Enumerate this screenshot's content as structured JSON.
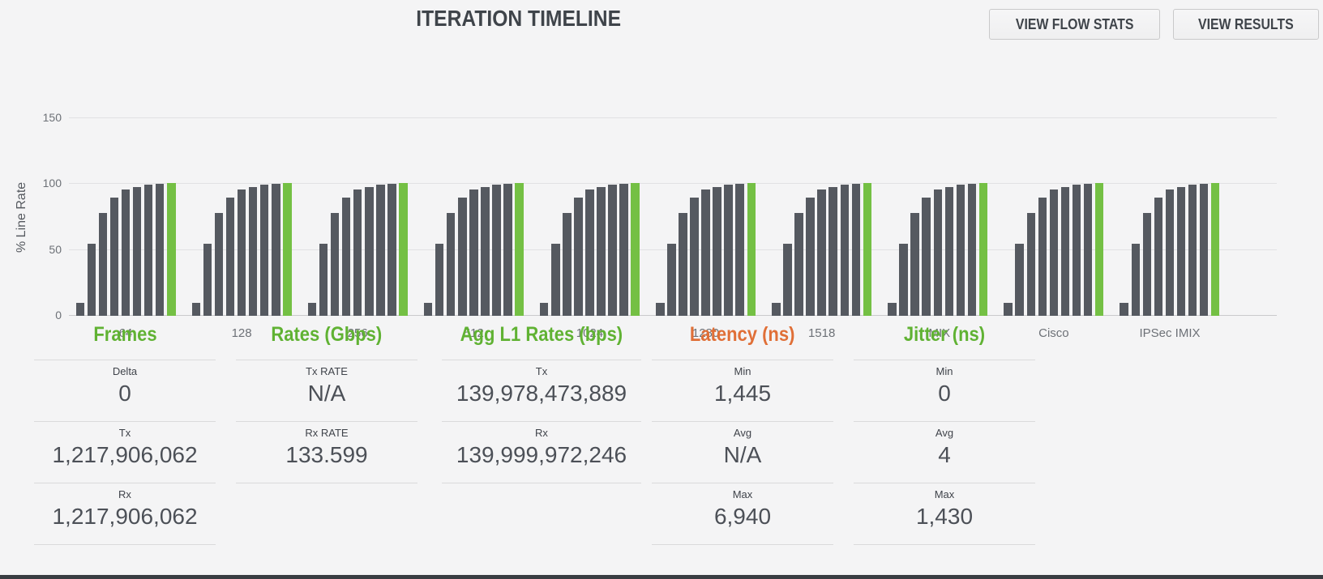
{
  "title": "ITERATION TIMELINE",
  "buttons": {
    "view_flow_stats": "VIEW FLOW STATS",
    "view_results": "VIEW RESULTS"
  },
  "chart_data": {
    "type": "bar",
    "title": "ITERATION TIMELINE",
    "xlabel": "",
    "ylabel": "% Line Rate",
    "ylim": [
      0,
      150
    ],
    "yticks": [
      0,
      50,
      100,
      150
    ],
    "grid": true,
    "legend": "none",
    "categories": [
      "64",
      "128",
      "256",
      "512",
      "1024",
      "1280",
      "1518",
      "IMIX",
      "Cisco",
      "IPSec IMIX"
    ],
    "pattern_note": "each category shows the same ramp of iteration bars followed by one green final-rate bar",
    "iteration_values": [
      10,
      55,
      78,
      90,
      96,
      98,
      99.5,
      100
    ],
    "final_value": 101,
    "bar_color": "#555960",
    "final_bar_color": "#74c044"
  },
  "stats": {
    "panels": [
      {
        "id": "frames",
        "title": "Frames",
        "title_color": "#60b233",
        "rows": [
          {
            "label": "Delta",
            "value": "0"
          },
          {
            "label": "Tx",
            "value": "1,217,906,062"
          },
          {
            "label": "Rx",
            "value": "1,217,906,062"
          }
        ]
      },
      {
        "id": "rates",
        "title": "Rates (Gbps)",
        "title_color": "#60b233",
        "rows": [
          {
            "label": "Tx RATE",
            "value": "N/A"
          },
          {
            "label": "Rx RATE",
            "value": "133.599"
          }
        ]
      },
      {
        "id": "agg-l1-rates",
        "title": "Agg L1 Rates (bps)",
        "title_color": "#60b233",
        "rows": [
          {
            "label": "Tx",
            "value": "139,978,473,889"
          },
          {
            "label": "Rx",
            "value": "139,999,972,246"
          }
        ]
      },
      {
        "id": "latency",
        "title": "Latency (ns)",
        "title_color": "#e06f37",
        "rows": [
          {
            "label": "Min",
            "value": "1,445"
          },
          {
            "label": "Avg",
            "value": "N/A"
          },
          {
            "label": "Max",
            "value": "6,940"
          }
        ]
      },
      {
        "id": "jitter",
        "title": "Jitter (ns)",
        "title_color": "#60b233",
        "rows": [
          {
            "label": "Min",
            "value": "0"
          },
          {
            "label": "Avg",
            "value": "4"
          },
          {
            "label": "Max",
            "value": "1,430"
          }
        ]
      }
    ]
  },
  "colors": {
    "background": "#f4f4f5",
    "bar_gray": "#555960",
    "bar_green": "#74c044",
    "header_green": "#60b233",
    "header_orange": "#e06f37",
    "text_dark": "#3f444a",
    "value_text": "#4c5057",
    "axis_text": "#6d7177",
    "gridline": "#e1e1e3",
    "divider": "#dadadb",
    "footer_strip": "#393d42"
  }
}
